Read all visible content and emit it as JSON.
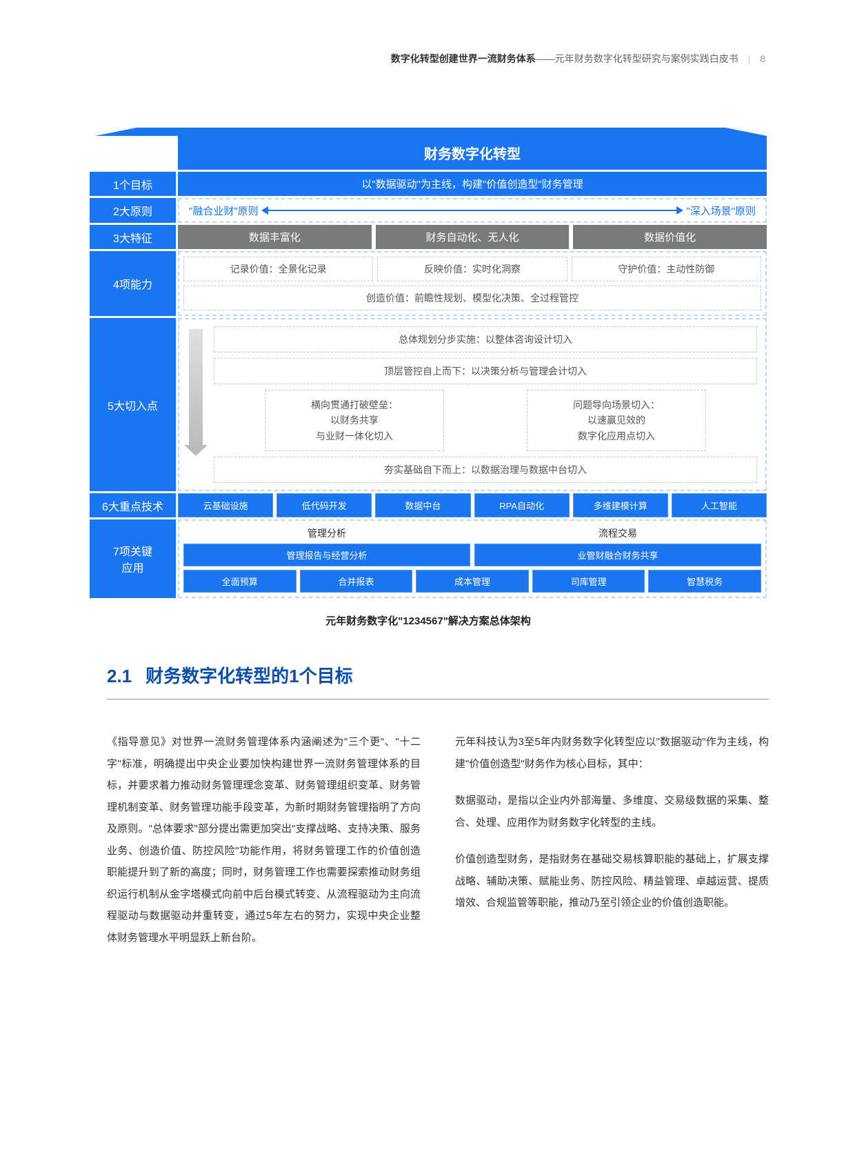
{
  "header": {
    "bold": "数字化转型创建世界一流财务体系",
    "dash": "——",
    "rest": "元年财务数字化转型研究与案例实践白皮书",
    "page": "8"
  },
  "diagram": {
    "title": "财务数字化转型",
    "r1": {
      "label": "1个目标",
      "text": "以\"数据驱动\"为主线，构建\"价值创造型\"财务管理"
    },
    "r2": {
      "label": "2大原则",
      "left": "\"融合业财\"原则",
      "right": "\"深入场景\"原则"
    },
    "r3": {
      "label": "3大特征",
      "a": "数据丰富化",
      "b": "财务自动化、无人化",
      "c": "数据价值化"
    },
    "r4": {
      "label": "4项能力",
      "a": "记录价值：全景化记录",
      "b": "反映价值：实时化洞察",
      "c": "守护价值：主动性防御",
      "d": "创造价值：前瞻性规划、模型化决策、全过程管控"
    },
    "r5": {
      "label": "5大切入点",
      "t1": "总体规划分步实施：以整体咨询设计切入",
      "t2": "顶层管控自上而下：以决策分析与管理会计切入",
      "m1": "横向贯通打破壁垒：\n以财务共享\n与业财一体化切入",
      "m2": "问题导向场景切入：\n以速赢见效的\n数字化应用点切入",
      "b1": "夯实基础自下而上：以数据治理与数据中台切入"
    },
    "r6": {
      "label": "6大重点技术",
      "items": [
        "云基础设施",
        "低代码开发",
        "数据中台",
        "RPA自动化",
        "多维建模计算",
        "人工智能"
      ]
    },
    "r7": {
      "label": "7项关键\n应用",
      "h1": "管理分析",
      "h2": "流程交易",
      "s1": "管理报告与经营分析",
      "s2": "业管财融合财务共享",
      "bot": [
        "全面预算",
        "合并报表",
        "成本管理",
        "司库管理",
        "智慧税务"
      ]
    },
    "caption": "元年财务数字化\"1234567\"解决方案总体架构"
  },
  "section": {
    "num": "2.1",
    "title": "财务数字化转型的1个目标"
  },
  "body": {
    "p1": "《指导意见》对世界一流财务管理体系内涵阐述为\"三个更\"、\"十二字\"标准，明确提出中央企业要加快构建世界一流财务管理体系的目标，并要求着力推动财务管理理念变革、财务管理组织变革、财务管理机制变革、财务管理功能手段变革，为新时期财务管理指明了方向及原则。\"总体要求\"部分提出需更加突出\"支撑战略、支持决策、服务业务、创造价值、防控风险\"功能作用，将财务管理工作的价值创造职能提升到了新的高度；同时，财务管理工作也需要探索推动财务组织运行机制从金字塔模式向前中后台模式转变、从流程驱动为主向流程驱动与数据驱动并重转变，通过5年左右的努力，实现中央企业整体财务管理水平明显跃上新台阶。",
    "p2": "元年科技认为3至5年内财务数字化转型应以\"数据驱动\"作为主线，构建\"价值创造型\"财务作为核心目标，其中：",
    "p3": "数据驱动，是指以企业内外部海量、多维度、交易级数据的采集、整合、处理、应用作为财务数字化转型的主线。",
    "p4": "价值创造型财务，是指财务在基础交易核算职能的基础上，扩展支撑战略、辅助决策、赋能业务、防控风险、精益管理、卓越运营、提质增效、合规监管等职能，推动乃至引领企业的价值创造职能。"
  }
}
